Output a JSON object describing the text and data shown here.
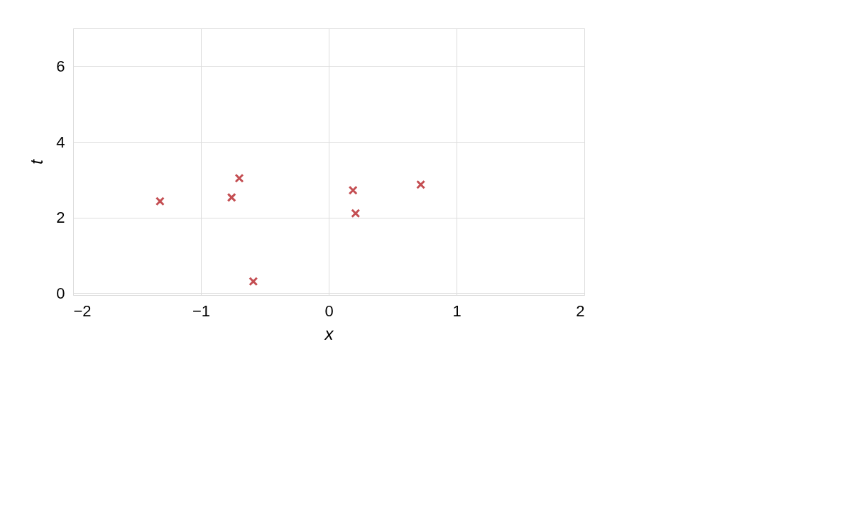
{
  "chart_data": {
    "type": "scatter",
    "xlabel": "x",
    "ylabel": "t",
    "x": [
      -1.32,
      -0.76,
      -0.7,
      -0.59,
      0.19,
      0.21,
      0.72
    ],
    "series": [
      {
        "color": "#c44e52",
        "values": [
          2.43,
          2.53,
          3.04,
          0.31,
          2.72,
          2.11,
          2.87
        ]
      }
    ],
    "xlim": [
      -2,
      2
    ],
    "ylim": [
      -0.05,
      7
    ],
    "xticks": [
      {
        "value": -2,
        "label": "−2"
      },
      {
        "value": -1,
        "label": "−1"
      },
      0,
      1,
      2
    ],
    "yticks": [
      0,
      2,
      4,
      6
    ],
    "grid": true,
    "marker": "cross"
  }
}
